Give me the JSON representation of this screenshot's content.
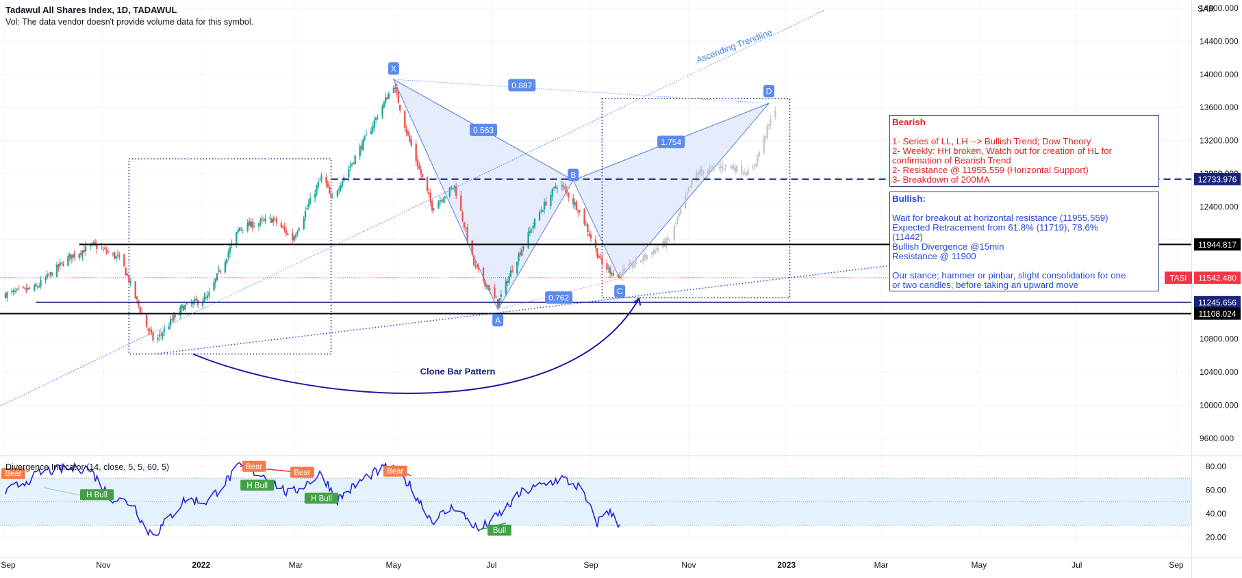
{
  "header": {
    "title": "Tadawul All Shares Index, 1D, TADAWUL",
    "volume_note": "Vol: The data vendor doesn't provide volume data for this symbol."
  },
  "currency": "SAR",
  "indicator_title": "Divergence Indicator (14, close, 5, 5, 60, 5)",
  "notes": {
    "bearish": {
      "title": "Bearish",
      "lines": [
        "1- Series of LL, LH --> Bullish Trend; Dow Theory",
        "2- Weekly: HH broken, Watch out for creation of HL for",
        "confirmation of Bearish Trend",
        "2- Resistance @ 11955.559 (Horizontal Support)",
        "3- Breakdown of 200MA"
      ]
    },
    "bullish": {
      "title": "Bullish:",
      "lines": [
        "Wait for breakout at horizontal resistance (11955.559)",
        "Expected Retracement from 61.8% (11719), 78.6%",
        "(11442)",
        "Bullish Divergence @15min",
        "Resistance @ 11900"
      ],
      "stance": [
        "Our stance; hammer or pinbar, slight consolidation for one",
        "or two candles, before taking an upward move"
      ]
    }
  },
  "annotations": {
    "ascending_trendline": "Ascending Trendline",
    "clone_bar": "Clone Bar Pattern",
    "points": [
      "X",
      "A",
      "B",
      "C",
      "D"
    ],
    "ratios": {
      "xb": "0.563",
      "xd": "0.887",
      "bd": "1.754",
      "ac": "0.762"
    }
  },
  "colors": {
    "up": "#26a69a",
    "down": "#ef5350",
    "pattern": "#5b7ce0",
    "pattern_fill": "#dce6fb",
    "navy": "#1a1aa0",
    "level_blue": "#1e3a8a",
    "indicator": "#2323d6",
    "bear_tag": "#f57c4a",
    "bull_tag": "#43a047",
    "band": "#e3f2fd",
    "tasi": "#f23645"
  },
  "chart_data": [
    {
      "type": "candlestick",
      "ylim": [
        9400,
        14900
      ],
      "y_ticks": [
        9600,
        10000,
        10400,
        10800,
        11200,
        11600,
        12000,
        12400,
        12800,
        13200,
        13600,
        14000,
        14400,
        14800
      ],
      "y_tick_labels": [
        "9600.000",
        "10000.000",
        "10400.000",
        "10800.000",
        "11200.000",
        "11600.000",
        "12000.000",
        "12400.000",
        "12800.000",
        "13200.000",
        "13600.000",
        "14000.000",
        "14400.000",
        "14800.000"
      ],
      "x_ticks": [
        "Sep",
        "Nov",
        "2022",
        "Mar",
        "May",
        "Jul",
        "Sep",
        "Nov",
        "2023",
        "Mar",
        "May",
        "Jul",
        "Sep"
      ],
      "close_series_key_points": [
        {
          "date": "2021-09-01",
          "close": 11340
        },
        {
          "date": "2021-09-20",
          "close": 11420
        },
        {
          "date": "2021-10-10",
          "close": 11780
        },
        {
          "date": "2021-10-26",
          "close": 11940
        },
        {
          "date": "2021-11-12",
          "close": 11760
        },
        {
          "date": "2021-11-28",
          "close": 10950
        },
        {
          "date": "2021-12-03",
          "close": 10760
        },
        {
          "date": "2021-12-20",
          "close": 11180
        },
        {
          "date": "2022-01-05",
          "close": 11300
        },
        {
          "date": "2022-01-25",
          "close": 12150
        },
        {
          "date": "2022-02-15",
          "close": 12250
        },
        {
          "date": "2022-02-27",
          "close": 12010
        },
        {
          "date": "2022-03-18",
          "close": 12800
        },
        {
          "date": "2022-03-23",
          "close": 12480
        },
        {
          "date": "2022-04-15",
          "close": 13280
        },
        {
          "date": "2022-05-01",
          "close": 13880
        },
        {
          "date": "2022-05-10",
          "close": 13250
        },
        {
          "date": "2022-05-25",
          "close": 12400
        },
        {
          "date": "2022-06-08",
          "close": 12650
        },
        {
          "date": "2022-06-20",
          "close": 11700
        },
        {
          "date": "2022-07-05",
          "close": 11230
        },
        {
          "date": "2022-07-15",
          "close": 11700
        },
        {
          "date": "2022-07-30",
          "close": 12300
        },
        {
          "date": "2022-08-12",
          "close": 12700
        },
        {
          "date": "2022-08-25",
          "close": 12350
        },
        {
          "date": "2022-09-08",
          "close": 11700
        },
        {
          "date": "2022-09-19",
          "close": 11542
        }
      ],
      "projection_key_points": [
        {
          "date": "2022-09-20",
          "close": 11600
        },
        {
          "date": "2022-10-20",
          "close": 12000
        },
        {
          "date": "2022-11-05",
          "close": 12800
        },
        {
          "date": "2022-11-25",
          "close": 12900
        },
        {
          "date": "2022-12-10",
          "close": 12800
        },
        {
          "date": "2022-12-25",
          "close": 13600
        }
      ],
      "harmonic_points": [
        {
          "label": "X",
          "date": "2022-05-01",
          "value": 13940
        },
        {
          "label": "A",
          "date": "2022-07-05",
          "value": 11160
        },
        {
          "label": "B",
          "date": "2022-08-21",
          "value": 12720
        },
        {
          "label": "C",
          "date": "2022-09-19",
          "value": 11530
        },
        {
          "label": "D",
          "date": "2022-12-21",
          "value": 13650
        }
      ],
      "horizontal_levels": [
        {
          "value": 12733.976,
          "label": "12733.976",
          "style": "dashed"
        },
        {
          "value": 11944.817,
          "label": "11944.817",
          "style": "solid"
        },
        {
          "value": 11542.48,
          "label": "11542.480",
          "style": "last",
          "symbol": "TASI"
        },
        {
          "value": 11245.656,
          "label": "11245.656",
          "style": "solid"
        },
        {
          "value": 11108.024,
          "label": "11108.024",
          "style": "solid"
        }
      ]
    },
    {
      "type": "line",
      "name": "Divergence Indicator",
      "ylim": [
        15,
        88
      ],
      "y_ticks": [
        20,
        40,
        60,
        80
      ],
      "y_tick_labels": [
        "20.00",
        "40.00",
        "60.00",
        "80.00"
      ],
      "band": [
        30,
        70
      ],
      "mid": 50,
      "key_points": [
        {
          "date": "2021-09-01",
          "value": 58
        },
        {
          "date": "2021-09-25",
          "value": 76
        },
        {
          "date": "2021-10-23",
          "value": 79
        },
        {
          "date": "2021-11-05",
          "value": 54
        },
        {
          "date": "2021-11-20",
          "value": 48
        },
        {
          "date": "2021-11-28",
          "value": 25
        },
        {
          "date": "2021-12-05",
          "value": 25
        },
        {
          "date": "2021-12-22",
          "value": 52
        },
        {
          "date": "2022-01-05",
          "value": 50
        },
        {
          "date": "2022-01-25",
          "value": 80
        },
        {
          "date": "2022-02-10",
          "value": 72
        },
        {
          "date": "2022-02-25",
          "value": 56
        },
        {
          "date": "2022-03-17",
          "value": 74
        },
        {
          "date": "2022-03-27",
          "value": 52
        },
        {
          "date": "2022-04-15",
          "value": 72
        },
        {
          "date": "2022-04-28",
          "value": 80
        },
        {
          "date": "2022-05-10",
          "value": 66
        },
        {
          "date": "2022-05-25",
          "value": 34
        },
        {
          "date": "2022-06-08",
          "value": 46
        },
        {
          "date": "2022-06-23",
          "value": 26
        },
        {
          "date": "2022-07-05",
          "value": 38
        },
        {
          "date": "2022-07-20",
          "value": 58
        },
        {
          "date": "2022-08-14",
          "value": 70
        },
        {
          "date": "2022-08-25",
          "value": 62
        },
        {
          "date": "2022-09-05",
          "value": 32
        },
        {
          "date": "2022-09-11",
          "value": 44
        },
        {
          "date": "2022-09-19",
          "value": 30
        }
      ],
      "divergence_tags": [
        {
          "text": "Bear",
          "kind": "bear",
          "date": "2021-09-01",
          "value": 74
        },
        {
          "text": "H Bull",
          "kind": "bull",
          "date": "2021-10-28",
          "value": 56
        },
        {
          "text": "Bear",
          "kind": "bear",
          "date": "2022-02-03",
          "value": 80
        },
        {
          "text": "H Bull",
          "kind": "bull",
          "date": "2022-02-05",
          "value": 64
        },
        {
          "text": "Bear",
          "kind": "bear",
          "date": "2022-03-05",
          "value": 75
        },
        {
          "text": "H Bull",
          "kind": "bull",
          "date": "2022-03-17",
          "value": 53
        },
        {
          "text": "Bear",
          "kind": "bear",
          "date": "2022-05-02",
          "value": 76
        },
        {
          "text": "Bull",
          "kind": "bull",
          "date": "2022-07-06",
          "value": 26
        }
      ]
    }
  ]
}
